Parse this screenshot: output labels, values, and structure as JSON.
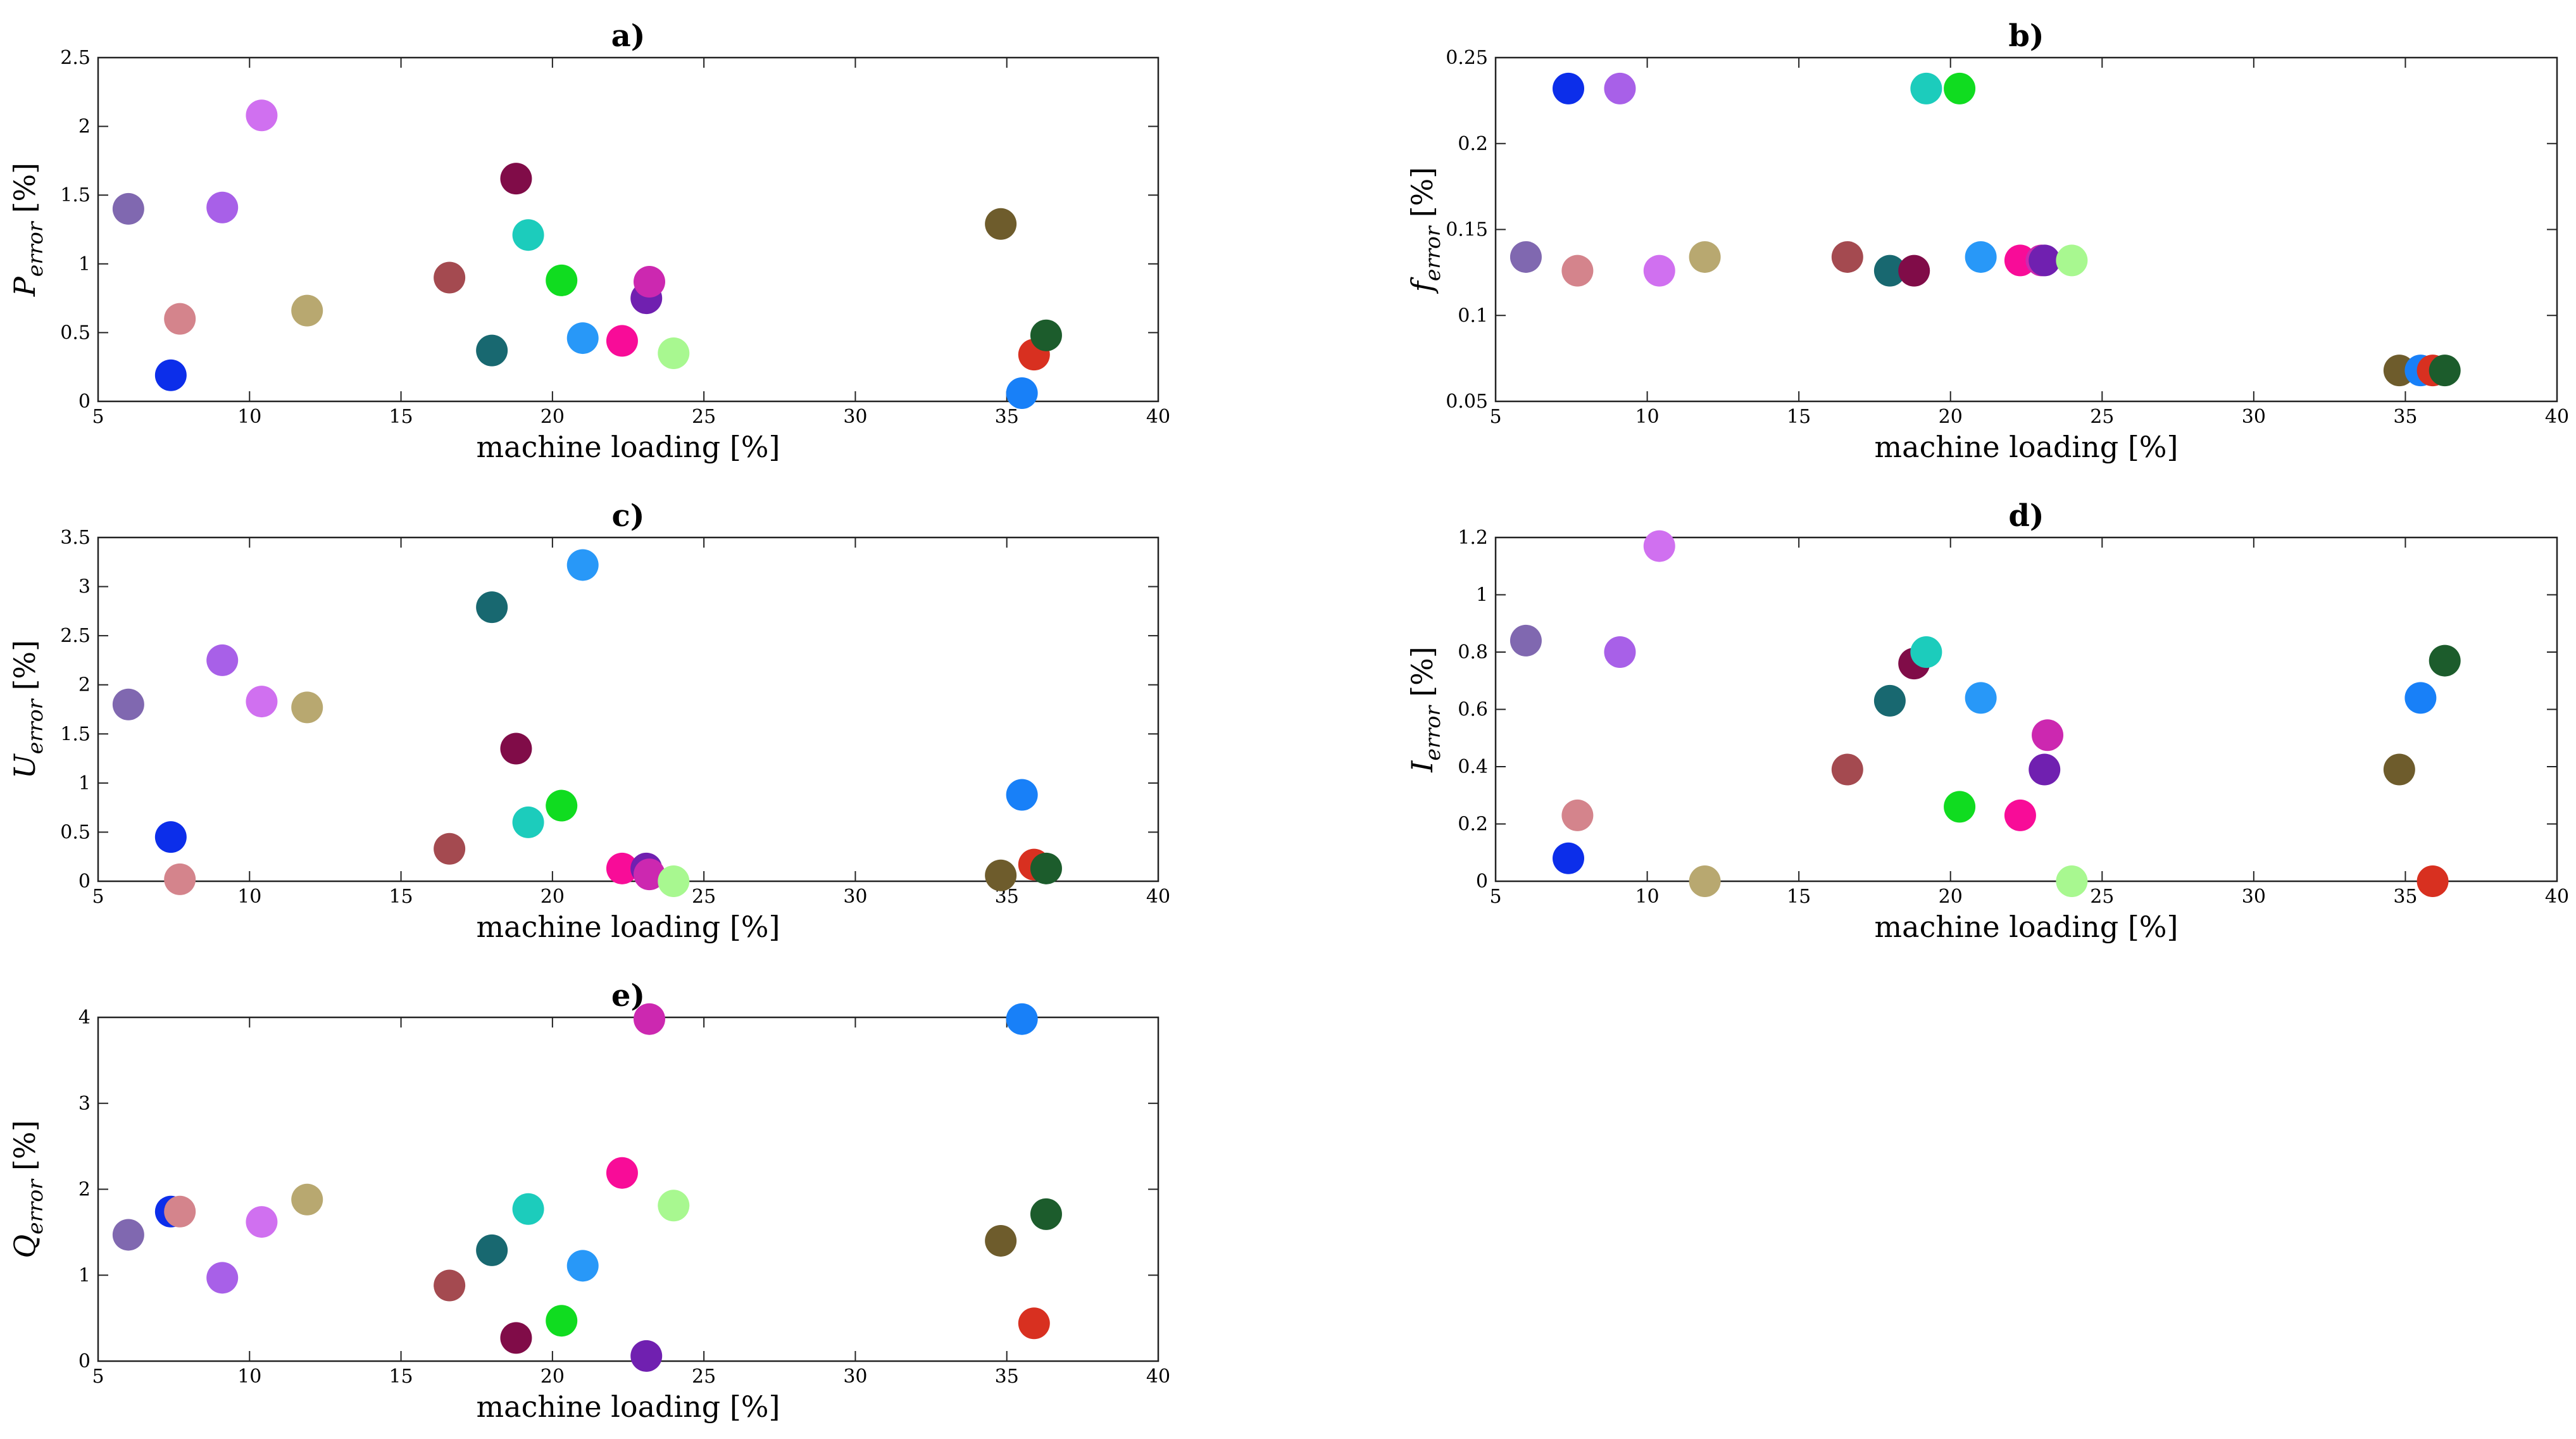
{
  "chart_data": [
    {
      "id": "a",
      "type": "scatter",
      "title": "a)",
      "xlabel": "machine loading [%]",
      "ylabel": {
        "main": "P",
        "sub": "error",
        "unit": "[%]"
      },
      "xlim": [
        5,
        40
      ],
      "ylim": [
        0,
        2.5
      ],
      "xticks": [
        "5",
        "10",
        "15",
        "20",
        "25",
        "30",
        "35",
        "40"
      ],
      "yticks": [
        "0",
        "0.5",
        "1",
        "1.5",
        "2",
        "2.5"
      ],
      "points": [
        {
          "x": 6.0,
          "y": 1.4,
          "color": "#8068b0"
        },
        {
          "x": 7.4,
          "y": 0.19,
          "color": "#0c2eea"
        },
        {
          "x": 7.7,
          "y": 0.6,
          "color": "#d4848c"
        },
        {
          "x": 9.1,
          "y": 1.41,
          "color": "#a860e8"
        },
        {
          "x": 10.4,
          "y": 2.08,
          "color": "#d070f0"
        },
        {
          "x": 11.9,
          "y": 0.66,
          "color": "#b8a870"
        },
        {
          "x": 16.6,
          "y": 0.9,
          "color": "#a44a50"
        },
        {
          "x": 18.0,
          "y": 0.37,
          "color": "#186870"
        },
        {
          "x": 18.8,
          "y": 1.62,
          "color": "#800c48"
        },
        {
          "x": 19.2,
          "y": 1.21,
          "color": "#1cccbc"
        },
        {
          "x": 20.3,
          "y": 0.88,
          "color": "#10dc20"
        },
        {
          "x": 21.0,
          "y": 0.46,
          "color": "#2898f8"
        },
        {
          "x": 22.3,
          "y": 0.44,
          "color": "#f80c98"
        },
        {
          "x": 23.1,
          "y": 0.75,
          "color": "#7020b0"
        },
        {
          "x": 23.2,
          "y": 0.87,
          "color": "#cc28b0"
        },
        {
          "x": 24.0,
          "y": 0.35,
          "color": "#a8f890"
        },
        {
          "x": 34.8,
          "y": 1.29,
          "color": "#6e5c2c"
        },
        {
          "x": 35.5,
          "y": 0.06,
          "color": "#1880f8"
        },
        {
          "x": 35.9,
          "y": 0.34,
          "color": "#d83020"
        },
        {
          "x": 36.3,
          "y": 0.48,
          "color": "#1c5c2c"
        }
      ]
    },
    {
      "id": "b",
      "type": "scatter",
      "title": "b)",
      "xlabel": "machine loading [%]",
      "ylabel": {
        "main": "f",
        "sub": "error",
        "unit": "[%]"
      },
      "xlim": [
        5,
        40
      ],
      "ylim": [
        0.05,
        0.25
      ],
      "xticks": [
        "5",
        "10",
        "15",
        "20",
        "25",
        "30",
        "35",
        "40"
      ],
      "yticks": [
        "0.05",
        "0.1",
        "0.15",
        "0.2",
        "0.25"
      ],
      "points": [
        {
          "x": 6.0,
          "y": 0.134,
          "color": "#8068b0"
        },
        {
          "x": 7.4,
          "y": 0.232,
          "color": "#0c2eea"
        },
        {
          "x": 7.7,
          "y": 0.126,
          "color": "#d4848c"
        },
        {
          "x": 9.1,
          "y": 0.232,
          "color": "#a860e8"
        },
        {
          "x": 10.4,
          "y": 0.126,
          "color": "#d070f0"
        },
        {
          "x": 11.9,
          "y": 0.134,
          "color": "#b8a870"
        },
        {
          "x": 16.6,
          "y": 0.134,
          "color": "#a44a50"
        },
        {
          "x": 18.0,
          "y": 0.126,
          "color": "#186870"
        },
        {
          "x": 18.8,
          "y": 0.126,
          "color": "#800c48"
        },
        {
          "x": 19.2,
          "y": 0.232,
          "color": "#1cccbc"
        },
        {
          "x": 20.3,
          "y": 0.232,
          "color": "#10dc20"
        },
        {
          "x": 21.0,
          "y": 0.134,
          "color": "#2898f8"
        },
        {
          "x": 22.3,
          "y": 0.132,
          "color": "#f80c98"
        },
        {
          "x": 23.0,
          "y": 0.132,
          "color": "#cc28b0"
        },
        {
          "x": 23.1,
          "y": 0.132,
          "color": "#7020b0"
        },
        {
          "x": 24.0,
          "y": 0.132,
          "color": "#a8f890"
        },
        {
          "x": 34.8,
          "y": 0.068,
          "color": "#6e5c2c"
        },
        {
          "x": 35.5,
          "y": 0.068,
          "color": "#1880f8"
        },
        {
          "x": 35.9,
          "y": 0.068,
          "color": "#d83020"
        },
        {
          "x": 36.3,
          "y": 0.068,
          "color": "#1c5c2c"
        }
      ]
    },
    {
      "id": "c",
      "type": "scatter",
      "title": "c)",
      "xlabel": "machine loading [%]",
      "ylabel": {
        "main": "U",
        "sub": "error",
        "unit": "[%]"
      },
      "xlim": [
        5,
        40
      ],
      "ylim": [
        0,
        3.5
      ],
      "xticks": [
        "5",
        "10",
        "15",
        "20",
        "25",
        "30",
        "35",
        "40"
      ],
      "yticks": [
        "0",
        "0.5",
        "1",
        "1.5",
        "2",
        "2.5",
        "3",
        "3.5"
      ],
      "points": [
        {
          "x": 6.0,
          "y": 1.8,
          "color": "#8068b0"
        },
        {
          "x": 7.4,
          "y": 0.45,
          "color": "#0c2eea"
        },
        {
          "x": 7.7,
          "y": 0.02,
          "color": "#d4848c"
        },
        {
          "x": 9.1,
          "y": 2.25,
          "color": "#a860e8"
        },
        {
          "x": 10.4,
          "y": 1.83,
          "color": "#d070f0"
        },
        {
          "x": 11.9,
          "y": 1.77,
          "color": "#b8a870"
        },
        {
          "x": 16.6,
          "y": 0.33,
          "color": "#a44a50"
        },
        {
          "x": 18.0,
          "y": 2.79,
          "color": "#186870"
        },
        {
          "x": 18.8,
          "y": 1.35,
          "color": "#800c48"
        },
        {
          "x": 19.2,
          "y": 0.6,
          "color": "#1cccbc"
        },
        {
          "x": 20.3,
          "y": 0.77,
          "color": "#10dc20"
        },
        {
          "x": 21.0,
          "y": 3.22,
          "color": "#2898f8"
        },
        {
          "x": 22.3,
          "y": 0.13,
          "color": "#f80c98"
        },
        {
          "x": 23.1,
          "y": 0.13,
          "color": "#7020b0"
        },
        {
          "x": 23.2,
          "y": 0.07,
          "color": "#cc28b0"
        },
        {
          "x": 24.0,
          "y": 0.0,
          "color": "#a8f890"
        },
        {
          "x": 34.8,
          "y": 0.06,
          "color": "#6e5c2c"
        },
        {
          "x": 35.5,
          "y": 0.88,
          "color": "#1880f8"
        },
        {
          "x": 35.9,
          "y": 0.17,
          "color": "#d83020"
        },
        {
          "x": 36.3,
          "y": 0.13,
          "color": "#1c5c2c"
        }
      ]
    },
    {
      "id": "d",
      "type": "scatter",
      "title": "d)",
      "xlabel": "machine loading [%]",
      "ylabel": {
        "main": "I",
        "sub": "error",
        "unit": "[%]"
      },
      "xlim": [
        5,
        40
      ],
      "ylim": [
        0,
        1.2
      ],
      "xticks": [
        "5",
        "10",
        "15",
        "20",
        "25",
        "30",
        "35",
        "40"
      ],
      "yticks": [
        "0",
        "0.2",
        "0.4",
        "0.6",
        "0.8",
        "1",
        "1.2"
      ],
      "points": [
        {
          "x": 6.0,
          "y": 0.84,
          "color": "#8068b0"
        },
        {
          "x": 7.4,
          "y": 0.08,
          "color": "#0c2eea"
        },
        {
          "x": 7.7,
          "y": 0.23,
          "color": "#d4848c"
        },
        {
          "x": 9.1,
          "y": 0.8,
          "color": "#a860e8"
        },
        {
          "x": 10.4,
          "y": 1.17,
          "color": "#d070f0"
        },
        {
          "x": 11.9,
          "y": 0.0,
          "color": "#b8a870"
        },
        {
          "x": 16.6,
          "y": 0.39,
          "color": "#a44a50"
        },
        {
          "x": 18.0,
          "y": 0.63,
          "color": "#186870"
        },
        {
          "x": 18.8,
          "y": 0.76,
          "color": "#800c48"
        },
        {
          "x": 19.2,
          "y": 0.8,
          "color": "#1cccbc"
        },
        {
          "x": 20.3,
          "y": 0.26,
          "color": "#10dc20"
        },
        {
          "x": 21.0,
          "y": 0.64,
          "color": "#2898f8"
        },
        {
          "x": 22.3,
          "y": 0.23,
          "color": "#f80c98"
        },
        {
          "x": 23.1,
          "y": 0.39,
          "color": "#7020b0"
        },
        {
          "x": 23.2,
          "y": 0.51,
          "color": "#cc28b0"
        },
        {
          "x": 24.0,
          "y": 0.0,
          "color": "#a8f890"
        },
        {
          "x": 34.8,
          "y": 0.39,
          "color": "#6e5c2c"
        },
        {
          "x": 35.5,
          "y": 0.64,
          "color": "#1880f8"
        },
        {
          "x": 35.9,
          "y": 0.0,
          "color": "#d83020"
        },
        {
          "x": 36.3,
          "y": 0.77,
          "color": "#1c5c2c"
        }
      ]
    },
    {
      "id": "e",
      "type": "scatter",
      "title": "e)",
      "xlabel": "machine loading [%]",
      "ylabel": {
        "main": "Q",
        "sub": "error",
        "unit": "[%]"
      },
      "xlim": [
        5,
        40
      ],
      "ylim": [
        0,
        4
      ],
      "xticks": [
        "5",
        "10",
        "15",
        "20",
        "25",
        "30",
        "35",
        "40"
      ],
      "yticks": [
        "0",
        "1",
        "2",
        "3",
        "4"
      ],
      "points": [
        {
          "x": 6.0,
          "y": 1.47,
          "color": "#8068b0"
        },
        {
          "x": 7.4,
          "y": 1.74,
          "color": "#0c2eea"
        },
        {
          "x": 7.7,
          "y": 1.74,
          "color": "#d4848c"
        },
        {
          "x": 9.1,
          "y": 0.97,
          "color": "#a860e8"
        },
        {
          "x": 10.4,
          "y": 1.62,
          "color": "#d070f0"
        },
        {
          "x": 11.9,
          "y": 1.88,
          "color": "#b8a870"
        },
        {
          "x": 16.6,
          "y": 0.88,
          "color": "#a44a50"
        },
        {
          "x": 18.0,
          "y": 1.29,
          "color": "#186870"
        },
        {
          "x": 18.8,
          "y": 0.27,
          "color": "#800c48"
        },
        {
          "x": 19.2,
          "y": 1.77,
          "color": "#1cccbc"
        },
        {
          "x": 20.3,
          "y": 0.47,
          "color": "#10dc20"
        },
        {
          "x": 21.0,
          "y": 1.11,
          "color": "#2898f8"
        },
        {
          "x": 22.3,
          "y": 2.19,
          "color": "#f80c98"
        },
        {
          "x": 23.1,
          "y": 0.06,
          "color": "#7020b0"
        },
        {
          "x": 23.2,
          "y": 3.98,
          "color": "#cc28b0"
        },
        {
          "x": 24.0,
          "y": 1.81,
          "color": "#a8f890"
        },
        {
          "x": 34.8,
          "y": 1.4,
          "color": "#6e5c2c"
        },
        {
          "x": 35.5,
          "y": 3.98,
          "color": "#1880f8"
        },
        {
          "x": 35.9,
          "y": 0.44,
          "color": "#d83020"
        },
        {
          "x": 36.3,
          "y": 1.71,
          "color": "#1c5c2c"
        }
      ]
    }
  ]
}
